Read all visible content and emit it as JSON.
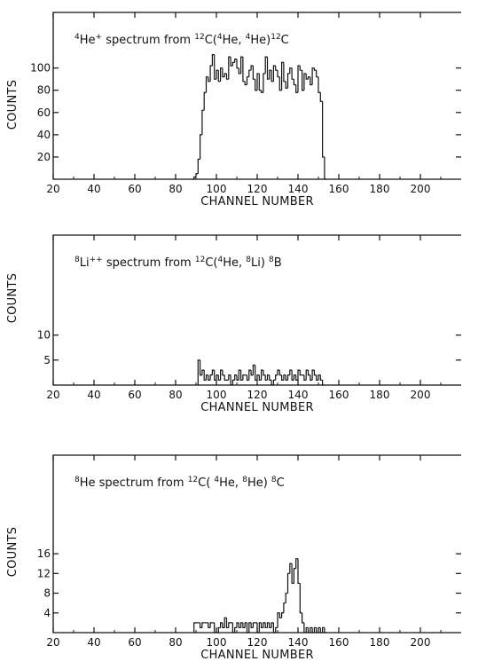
{
  "chart_data": [
    {
      "type": "histogram",
      "title": "⁴He⁺ spectrum from ¹²C(⁴He,⁴He)¹²C",
      "title_parts": [
        {
          "t": "4",
          "sup": true
        },
        {
          "t": "He"
        },
        {
          "t": "+",
          "sup": true
        },
        {
          "t": " spectrum from "
        },
        {
          "t": "12",
          "sup": true
        },
        {
          "t": "C("
        },
        {
          "t": "4",
          "sup": true
        },
        {
          "t": "He, "
        },
        {
          "t": "4",
          "sup": true
        },
        {
          "t": "He)"
        },
        {
          "t": "12",
          "sup": true
        },
        {
          "t": "C"
        }
      ],
      "xlabel": "CHANNEL NUMBER",
      "ylabel": "COUNTS",
      "xlim": [
        20,
        220
      ],
      "ylim": [
        0,
        150
      ],
      "xticks": [
        20,
        40,
        60,
        80,
        100,
        120,
        140,
        160,
        180,
        200
      ],
      "yticks": [
        20,
        40,
        60,
        80,
        100
      ],
      "bin_width": 1,
      "x_start": 88,
      "values": [
        0,
        2,
        5,
        18,
        40,
        62,
        78,
        92,
        88,
        102,
        112,
        90,
        98,
        88,
        100,
        92,
        95,
        90,
        110,
        102,
        105,
        108,
        100,
        95,
        110,
        88,
        85,
        92,
        98,
        102,
        90,
        80,
        95,
        80,
        78,
        95,
        110,
        90,
        98,
        88,
        102,
        98,
        92,
        80,
        105,
        88,
        82,
        95,
        100,
        90,
        85,
        78,
        102,
        98,
        80,
        95,
        90,
        92,
        85,
        100,
        98,
        92,
        78,
        70,
        20,
        0
      ]
    },
    {
      "type": "histogram",
      "title": "⁸Li⁺⁺ spectrum from ¹²C(⁴He,⁸Li)⁸B",
      "title_parts": [
        {
          "t": "8",
          "sup": true
        },
        {
          "t": "Li"
        },
        {
          "t": "++",
          "sup": true
        },
        {
          "t": " spectrum from "
        },
        {
          "t": "12",
          "sup": true
        },
        {
          "t": "C("
        },
        {
          "t": "4",
          "sup": true
        },
        {
          "t": "He, "
        },
        {
          "t": "8",
          "sup": true
        },
        {
          "t": "Li) "
        },
        {
          "t": "8",
          "sup": true
        },
        {
          "t": "B"
        }
      ],
      "xlabel": "CHANNEL NUMBER",
      "ylabel": "COUNTS",
      "xlim": [
        20,
        220
      ],
      "ylim": [
        0,
        30
      ],
      "xticks": [
        20,
        40,
        60,
        80,
        100,
        120,
        140,
        160,
        180,
        200
      ],
      "yticks": [
        5,
        10
      ],
      "bin_width": 1,
      "x_start": 91,
      "values": [
        5,
        2,
        3,
        1,
        2,
        1,
        2,
        3,
        1,
        2,
        1,
        3,
        2,
        1,
        1,
        2,
        0,
        1,
        2,
        1,
        3,
        1,
        2,
        2,
        1,
        3,
        2,
        4,
        1,
        2,
        1,
        3,
        2,
        1,
        2,
        1,
        0,
        1,
        2,
        3,
        2,
        1,
        2,
        1,
        2,
        3,
        1,
        2,
        1,
        3,
        2,
        2,
        1,
        3,
        2,
        1,
        3,
        2,
        1,
        2,
        1,
        0
      ]
    },
    {
      "type": "histogram",
      "title": "⁸He spectrum from ¹²C(⁴He,⁸He)⁸C",
      "title_parts": [
        {
          "t": "8",
          "sup": true
        },
        {
          "t": "He spectrum from "
        },
        {
          "t": "12",
          "sup": true
        },
        {
          "t": "C( "
        },
        {
          "t": "4",
          "sup": true
        },
        {
          "t": "He, "
        },
        {
          "t": "8",
          "sup": true
        },
        {
          "t": "He) "
        },
        {
          "t": "8",
          "sup": true
        },
        {
          "t": "C"
        }
      ],
      "xlabel": "CHANNEL NUMBER",
      "ylabel": "COUNTS",
      "xlim": [
        20,
        220
      ],
      "ylim": [
        0,
        36
      ],
      "xticks": [
        20,
        40,
        60,
        80,
        100,
        120,
        140,
        160,
        180,
        200
      ],
      "yticks": [
        4,
        8,
        12,
        16
      ],
      "bin_width": 1,
      "x_start": 89,
      "values": [
        2,
        2,
        2,
        1,
        2,
        2,
        2,
        1,
        2,
        2,
        0,
        0,
        1,
        2,
        1,
        3,
        1,
        2,
        2,
        0,
        1,
        2,
        1,
        2,
        1,
        2,
        0,
        2,
        1,
        2,
        2,
        0,
        2,
        1,
        2,
        1,
        2,
        1,
        2,
        0,
        1,
        4,
        3,
        4,
        6,
        8,
        12,
        14,
        10,
        13,
        15,
        10,
        4,
        2,
        0,
        1,
        0,
        1,
        0,
        1,
        0,
        1,
        0,
        1,
        0
      ]
    }
  ]
}
